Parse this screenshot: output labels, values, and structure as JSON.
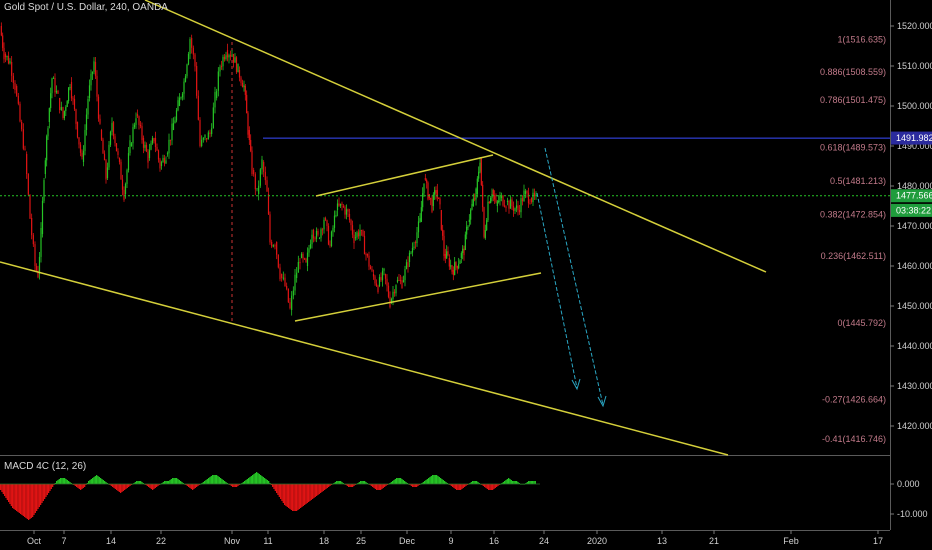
{
  "header": {
    "symbol_title": "Gold Spot / U.S. Dollar, 240, OANDA"
  },
  "macd": {
    "title": "MACD 4C (12, 26)",
    "ticks": [
      "0.000",
      "-10.000"
    ],
    "tick_values": [
      0,
      -10
    ]
  },
  "colors": {
    "background": "#000000",
    "up": "#26c426",
    "down": "#e01414",
    "trendline": "#d4cf3a",
    "arrow": "#2aa7c4",
    "hline": "#3b4cff",
    "fib_text": "#c27a8a",
    "price_tag": "#1f9c3c",
    "axis_text": "#d0d0d0"
  },
  "chart_data": {
    "type": "candlestick",
    "y_axis": {
      "ticks": [
        "1520.000",
        "1510.000",
        "1500.000",
        "1490.000",
        "1480.000",
        "1470.000",
        "1460.000",
        "1450.000",
        "1440.000",
        "1430.000",
        "1420.000"
      ],
      "tick_values": [
        1520,
        1510,
        1500,
        1490,
        1480,
        1470,
        1460,
        1450,
        1440,
        1430,
        1420
      ],
      "range": [
        1413,
        1526
      ]
    },
    "x_axis": {
      "labels": [
        "Oct",
        "7",
        "14",
        "22",
        "Nov",
        "11",
        "18",
        "25",
        "Dec",
        "9",
        "16",
        "24",
        "2020",
        "13",
        "21",
        "Feb",
        "17"
      ]
    },
    "price_tags": [
      {
        "label": "1491.982",
        "value": 1491.982,
        "bg": "#2b2b9e"
      },
      {
        "label": "1477.566",
        "value": 1477.566,
        "bg": "#1f9c3c"
      },
      {
        "label": "03:38:22",
        "value": 1473.9,
        "bg": "#1f9c3c"
      }
    ],
    "current_price": 1477.566,
    "horizontal_line": 1491.982,
    "fib_levels": [
      {
        "label": "1(1516.635)",
        "value": 1516.635
      },
      {
        "label": "0.886(1508.559)",
        "value": 1508.559
      },
      {
        "label": "0.786(1501.475)",
        "value": 1501.475
      },
      {
        "label": "0.618(1489.573)",
        "value": 1489.573
      },
      {
        "label": "0.5(1481.213)",
        "value": 1481.213
      },
      {
        "label": "0.382(1472.854)",
        "value": 1472.854
      },
      {
        "label": "0.236(1462.511)",
        "value": 1462.511
      },
      {
        "label": "0(1445.792)",
        "value": 1445.792
      },
      {
        "label": "-0.27(1426.664)",
        "value": 1426.664
      },
      {
        "label": "-0.41(1416.746)",
        "value": 1416.746
      }
    ],
    "price_path": [
      [
        0,
        1520
      ],
      [
        4,
        1513
      ],
      [
        10,
        1511
      ],
      [
        15,
        1505
      ],
      [
        20,
        1496
      ],
      [
        25,
        1488
      ],
      [
        30,
        1472
      ],
      [
        35,
        1460
      ],
      [
        38,
        1458
      ],
      [
        41,
        1468
      ],
      [
        44,
        1483
      ],
      [
        48,
        1496
      ],
      [
        52,
        1507
      ],
      [
        58,
        1502
      ],
      [
        63,
        1497
      ],
      [
        70,
        1506
      ],
      [
        76,
        1496
      ],
      [
        82,
        1486
      ],
      [
        88,
        1502
      ],
      [
        94,
        1511
      ],
      [
        100,
        1494
      ],
      [
        106,
        1482
      ],
      [
        112,
        1496
      ],
      [
        118,
        1487
      ],
      [
        124,
        1478
      ],
      [
        130,
        1490
      ],
      [
        136,
        1498
      ],
      [
        142,
        1492
      ],
      [
        148,
        1487
      ],
      [
        154,
        1492
      ],
      [
        160,
        1485
      ],
      [
        166,
        1488
      ],
      [
        172,
        1494
      ],
      [
        178,
        1500
      ],
      [
        184,
        1506
      ],
      [
        190,
        1517
      ],
      [
        195,
        1510
      ],
      [
        200,
        1490
      ],
      [
        205,
        1492
      ],
      [
        210,
        1493
      ],
      [
        215,
        1502
      ],
      [
        220,
        1510
      ],
      [
        226,
        1514
      ],
      [
        232,
        1513
      ],
      [
        238,
        1509
      ],
      [
        244,
        1505
      ],
      [
        248,
        1494
      ],
      [
        252,
        1484
      ],
      [
        257,
        1478
      ],
      [
        262,
        1486
      ],
      [
        267,
        1478
      ],
      [
        270,
        1466
      ],
      [
        275,
        1466
      ],
      [
        280,
        1458
      ],
      [
        285,
        1455
      ],
      [
        290,
        1449
      ],
      [
        295,
        1457
      ],
      [
        300,
        1462
      ],
      [
        306,
        1460
      ],
      [
        312,
        1469
      ],
      [
        318,
        1467
      ],
      [
        324,
        1472
      ],
      [
        330,
        1465
      ],
      [
        336,
        1474
      ],
      [
        342,
        1475
      ],
      [
        348,
        1473
      ],
      [
        354,
        1467
      ],
      [
        360,
        1469
      ],
      [
        366,
        1463
      ],
      [
        372,
        1458
      ],
      [
        378,
        1455
      ],
      [
        384,
        1458
      ],
      [
        390,
        1451
      ],
      [
        396,
        1456
      ],
      [
        402,
        1456
      ],
      [
        408,
        1461
      ],
      [
        414,
        1466
      ],
      [
        420,
        1471
      ],
      [
        424,
        1482
      ],
      [
        428,
        1478
      ],
      [
        432,
        1475
      ],
      [
        436,
        1479
      ],
      [
        440,
        1474
      ],
      [
        444,
        1463
      ],
      [
        448,
        1462
      ],
      [
        452,
        1459
      ],
      [
        456,
        1460
      ],
      [
        460,
        1462
      ],
      [
        464,
        1464
      ],
      [
        468,
        1471
      ],
      [
        472,
        1475
      ],
      [
        476,
        1478
      ],
      [
        480,
        1487
      ],
      [
        484,
        1467
      ],
      [
        488,
        1476
      ],
      [
        492,
        1479
      ],
      [
        496,
        1475
      ],
      [
        500,
        1477
      ],
      [
        506,
        1476
      ],
      [
        512,
        1475
      ],
      [
        518,
        1474
      ],
      [
        524,
        1478
      ],
      [
        530,
        1477
      ],
      [
        536,
        1476.5
      ]
    ],
    "macd_values": [
      -2,
      -4,
      -6,
      -8,
      -9,
      -10,
      -11,
      -12,
      -11,
      -9,
      -7,
      -5,
      -3,
      -1,
      1,
      2,
      2,
      1,
      0,
      -1,
      -2,
      -1,
      1,
      2,
      3,
      2,
      1,
      0,
      -1,
      -2,
      -3,
      -2,
      -1,
      0,
      1,
      1,
      0,
      -1,
      -2,
      -1,
      0,
      1,
      1,
      2,
      2,
      1,
      0,
      -1,
      -2,
      -1,
      0,
      1,
      2,
      3,
      3,
      2,
      1,
      0,
      -1,
      -1,
      0,
      1,
      2,
      3,
      4,
      3,
      2,
      1,
      -1,
      -3,
      -5,
      -7,
      -8,
      -9,
      -9,
      -8,
      -7,
      -6,
      -5,
      -4,
      -3,
      -2,
      -1,
      0,
      1,
      1,
      0,
      -1,
      -1,
      0,
      1,
      1,
      0,
      -1,
      -2,
      -2,
      -1,
      0,
      1,
      2,
      2,
      1,
      0,
      -1,
      -1,
      0,
      1,
      2,
      3,
      3,
      2,
      1,
      0,
      -1,
      -2,
      -2,
      -1,
      0,
      1,
      1,
      0,
      -1,
      -2,
      -2,
      -1,
      0,
      1,
      2,
      1,
      1,
      0,
      0,
      1,
      1,
      1
    ]
  }
}
